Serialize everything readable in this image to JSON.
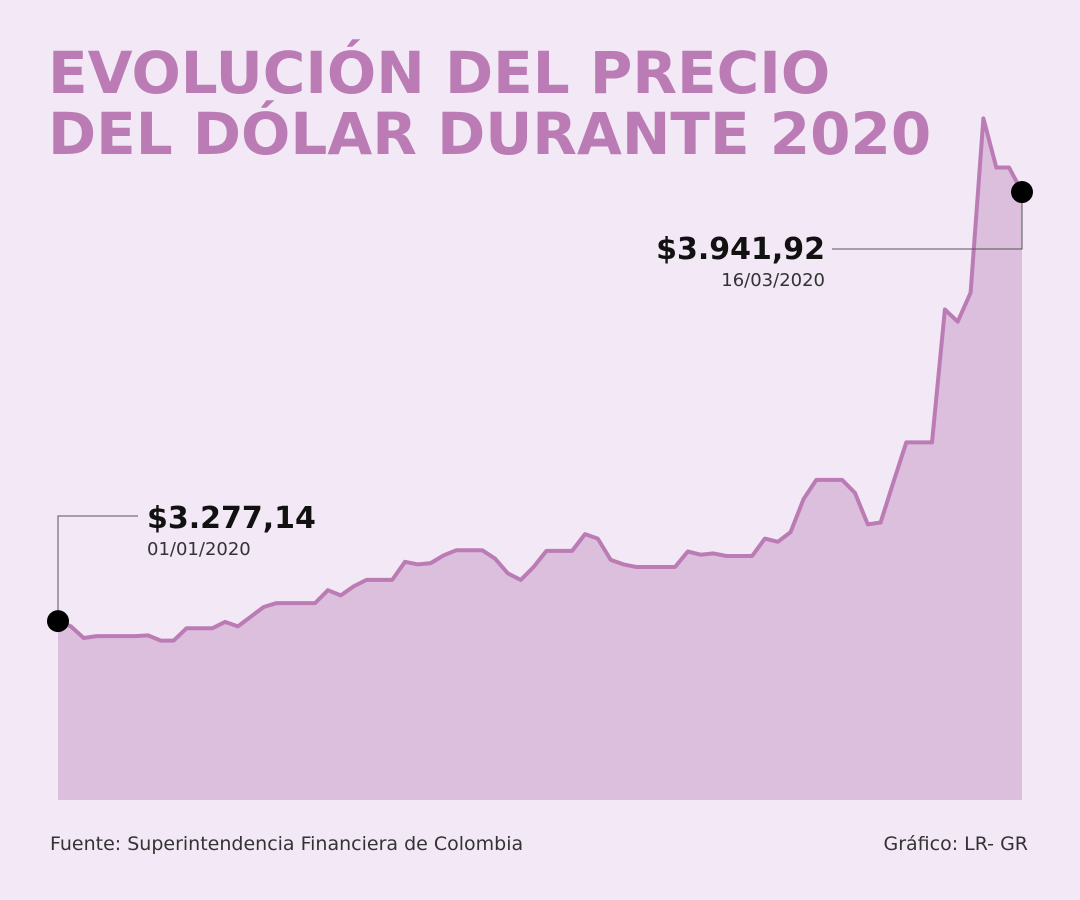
{
  "colors": {
    "background": "#f3e8f5",
    "title": "#bb7cb5",
    "line": "#bb7cb5",
    "area": "#dbbfdc",
    "marker": "#000000",
    "leader": "#555555"
  },
  "chart_data": {
    "type": "area",
    "title_lines": [
      "EVOLUCIÓN DEL PRECIO",
      "DEL DÓLAR DURANTE 2020"
    ],
    "xlabel": "",
    "ylabel": "",
    "ylim": [
      3000,
      4100
    ],
    "values": [
      3277.14,
      3269,
      3251,
      3254,
      3254,
      3254,
      3254,
      3255,
      3247,
      3247,
      3266,
      3266,
      3266,
      3276,
      3269,
      3284,
      3299,
      3305,
      3305,
      3305,
      3305,
      3325,
      3317,
      3331,
      3341,
      3341,
      3341,
      3369,
      3365,
      3367,
      3379,
      3387,
      3387,
      3387,
      3374,
      3351,
      3341,
      3361,
      3386,
      3386,
      3386,
      3412,
      3405,
      3372,
      3365,
      3361,
      3361,
      3361,
      3361,
      3385,
      3380,
      3382,
      3378,
      3378,
      3378,
      3405,
      3400,
      3415,
      3466,
      3496,
      3496,
      3496,
      3476,
      3427,
      3430,
      3493,
      3554,
      3554,
      3554,
      3760,
      3741,
      3786,
      4056,
      3980,
      3980,
      3941.92
    ],
    "annotations": [
      {
        "name": "start",
        "value": "$3.277,14",
        "date": "01/01/2020"
      },
      {
        "name": "end",
        "value": "$3.941,92",
        "date": "16/03/2020"
      }
    ]
  },
  "footer": {
    "source": "Fuente: Superintendencia Financiera de Colombia",
    "credit": "Gráfico: LR- GR"
  }
}
